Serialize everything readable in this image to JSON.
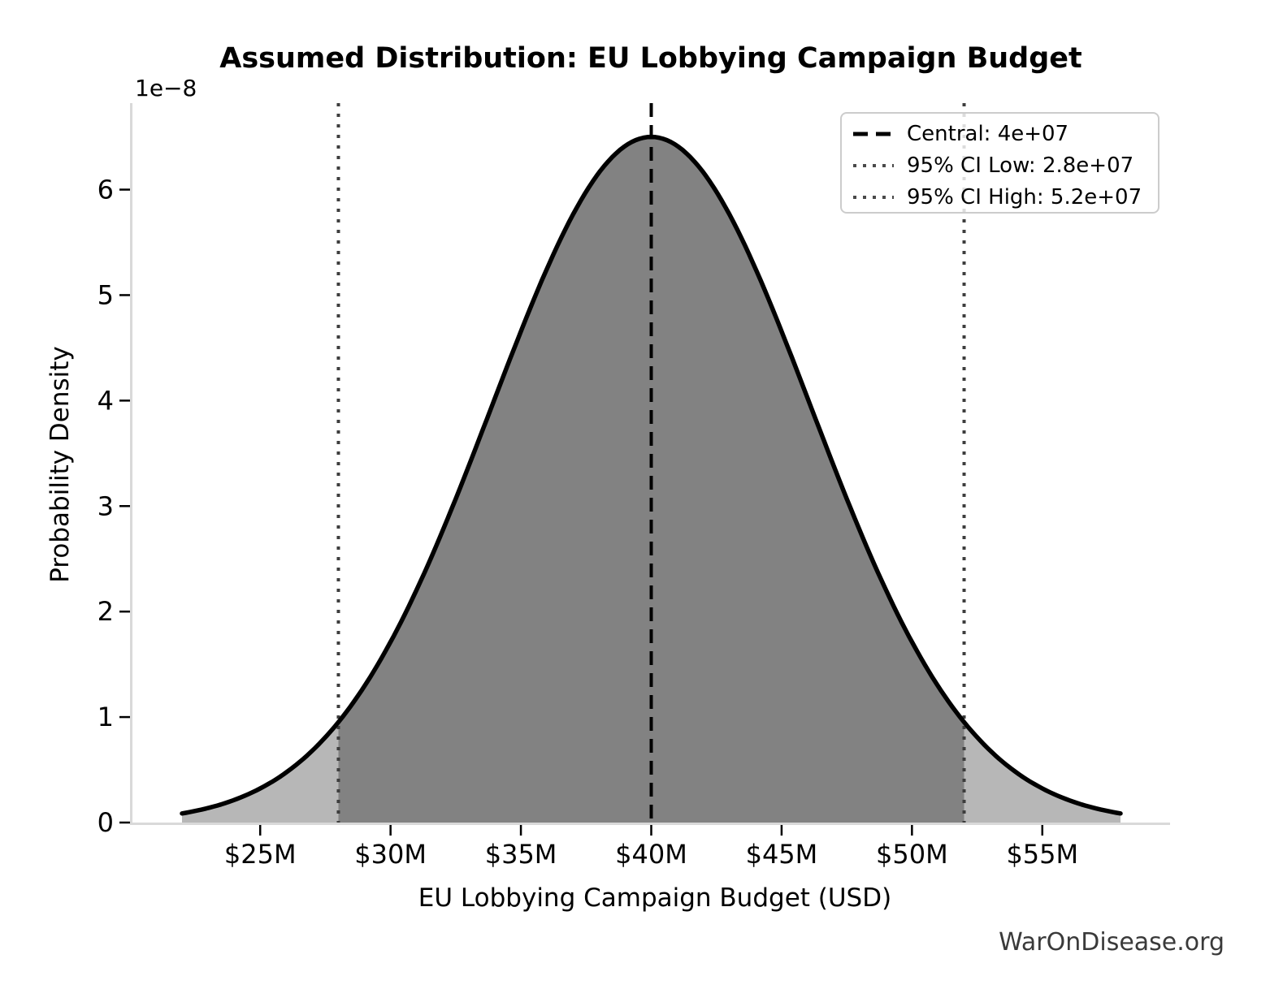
{
  "watermark": "WarOnDisease.org",
  "chart_data": {
    "type": "area",
    "title": "Assumed Distribution: EU Lobbying Campaign Budget",
    "xlabel": "EU Lobbying Campaign Budget (USD)",
    "ylabel": "Probability Density",
    "y_offset_label": "1e−8",
    "grid": false,
    "legend_position": "upper right",
    "distribution": {
      "shape": "normal",
      "central": 40000000.0,
      "ci95_low": 28000000.0,
      "ci95_high": 52000000.0,
      "sigma": 6122000.0,
      "peak_density": 6.5e-08
    },
    "x_range_data": [
      22000000.0,
      58000000.0
    ],
    "xlim": [
      20100000.0,
      59900000.0
    ],
    "ylim": [
      0,
      6.82e-08
    ],
    "x_ticks": [
      {
        "label": "$25M",
        "value": 25000000.0
      },
      {
        "label": "$30M",
        "value": 30000000.0
      },
      {
        "label": "$35M",
        "value": 35000000.0
      },
      {
        "label": "$40M",
        "value": 40000000.0
      },
      {
        "label": "$45M",
        "value": 45000000.0
      },
      {
        "label": "$50M",
        "value": 50000000.0
      },
      {
        "label": "$55M",
        "value": 55000000.0
      }
    ],
    "y_ticks": [
      {
        "label": "0",
        "value": 0
      },
      {
        "label": "1",
        "value": 1e-08
      },
      {
        "label": "2",
        "value": 2e-08
      },
      {
        "label": "3",
        "value": 3e-08
      },
      {
        "label": "4",
        "value": 4e-08
      },
      {
        "label": "5",
        "value": 5e-08
      },
      {
        "label": "6",
        "value": 6e-08
      }
    ],
    "legend": [
      {
        "label": "Central: 4e+07",
        "style": "dashed",
        "color": "#000000"
      },
      {
        "label": "95% CI Low: 2.8e+07",
        "style": "dotted",
        "color": "#4a4a4a"
      },
      {
        "label": "95% CI High: 5.2e+07",
        "style": "dotted",
        "color": "#4a4a4a"
      }
    ],
    "colors": {
      "curve": "#000000",
      "central_line": "#000000",
      "ci_line": "#3d3d3d",
      "fill_inner": "#828282",
      "fill_outer": "#b7b7b7",
      "spine": "#d9d9d9",
      "tick": "#000000",
      "legend_border": "#cccccc",
      "watermark": "#3a3a3a"
    }
  }
}
